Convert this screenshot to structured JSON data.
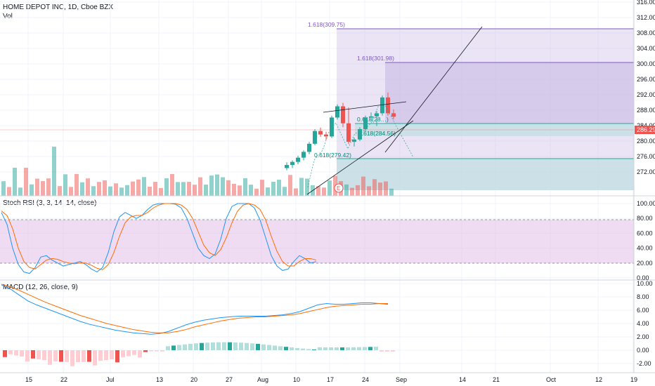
{
  "price_pane": {
    "title": "HOME DEPOT INC, 1D, Cboe BZX",
    "sub": "Vol",
    "y_ticks": [
      316,
      312,
      308,
      304,
      300,
      296,
      292,
      288,
      284,
      280,
      276,
      272
    ],
    "last_price": "286.29",
    "colors": {
      "up": "#26a69a",
      "down": "#ef5350",
      "purple_fill": "#d1c4e9",
      "teal_fill": "#b2dfdb"
    },
    "fib_labels": [
      "1.618(309.75)",
      "1.618(301.98)",
      "0.618(28…)",
      "0.618(284.56)",
      "0.618(279.42)"
    ],
    "earnings_marker": "E"
  },
  "stoch_pane": {
    "title": "Stoch RSI (3, 3, 14, 14, close)",
    "y_ticks": [
      "100.00",
      "80.00",
      "60.00",
      "40.00",
      "20.00",
      "0.00"
    ]
  },
  "macd_pane": {
    "title": "MACD (12, 26, close, 9)",
    "y_ticks": [
      "10.00",
      "8.00",
      "6.00",
      "4.00",
      "2.00",
      "0.00",
      "-2.00"
    ]
  },
  "x_axis": {
    "ticks": [
      "15",
      "22",
      "Jul",
      "13",
      "20",
      "27",
      "Aug",
      "10",
      "17",
      "24",
      "Sep",
      "14",
      "21",
      "Oct",
      "12",
      "19"
    ]
  },
  "chart_data": {
    "type": "candlestick",
    "ohlc": [
      [
        273.0,
        274.5,
        272.4,
        273.8
      ],
      [
        273.8,
        275.0,
        273.0,
        274.6
      ],
      [
        274.6,
        276.2,
        274.0,
        275.7
      ],
      [
        275.7,
        277.6,
        275.0,
        277.2
      ],
      [
        277.2,
        279.8,
        276.6,
        279.3
      ],
      [
        279.3,
        283.1,
        278.9,
        282.6
      ],
      [
        282.6,
        283.5,
        281.1,
        281.7
      ],
      [
        281.7,
        282.4,
        280.3,
        281.2
      ],
      [
        281.2,
        286.6,
        280.8,
        286.1
      ],
      [
        286.1,
        289.5,
        285.6,
        289.0
      ],
      [
        289.0,
        289.9,
        283.6,
        284.6
      ],
      [
        284.6,
        288.7,
        279.2,
        279.8
      ],
      [
        279.8,
        280.9,
        278.6,
        280.4
      ],
      [
        280.4,
        283.6,
        280.0,
        283.1
      ],
      [
        283.1,
        286.6,
        282.6,
        286.1
      ],
      [
        286.1,
        287.4,
        285.1,
        286.4
      ],
      [
        286.4,
        287.8,
        283.9,
        287.2
      ],
      [
        287.2,
        291.8,
        286.6,
        291.3
      ],
      [
        291.3,
        292.6,
        286.6,
        287.2
      ],
      [
        287.2,
        288.2,
        285.6,
        286.3
      ]
    ],
    "volume_bars": 70,
    "stoch_rsi": {
      "k_range": [
        0,
        100
      ],
      "bands": [
        20,
        80
      ]
    },
    "macd": {
      "range": [
        -2,
        10
      ]
    },
    "fib_levels": [
      309.75,
      301.98,
      284.56,
      279.42
    ]
  }
}
